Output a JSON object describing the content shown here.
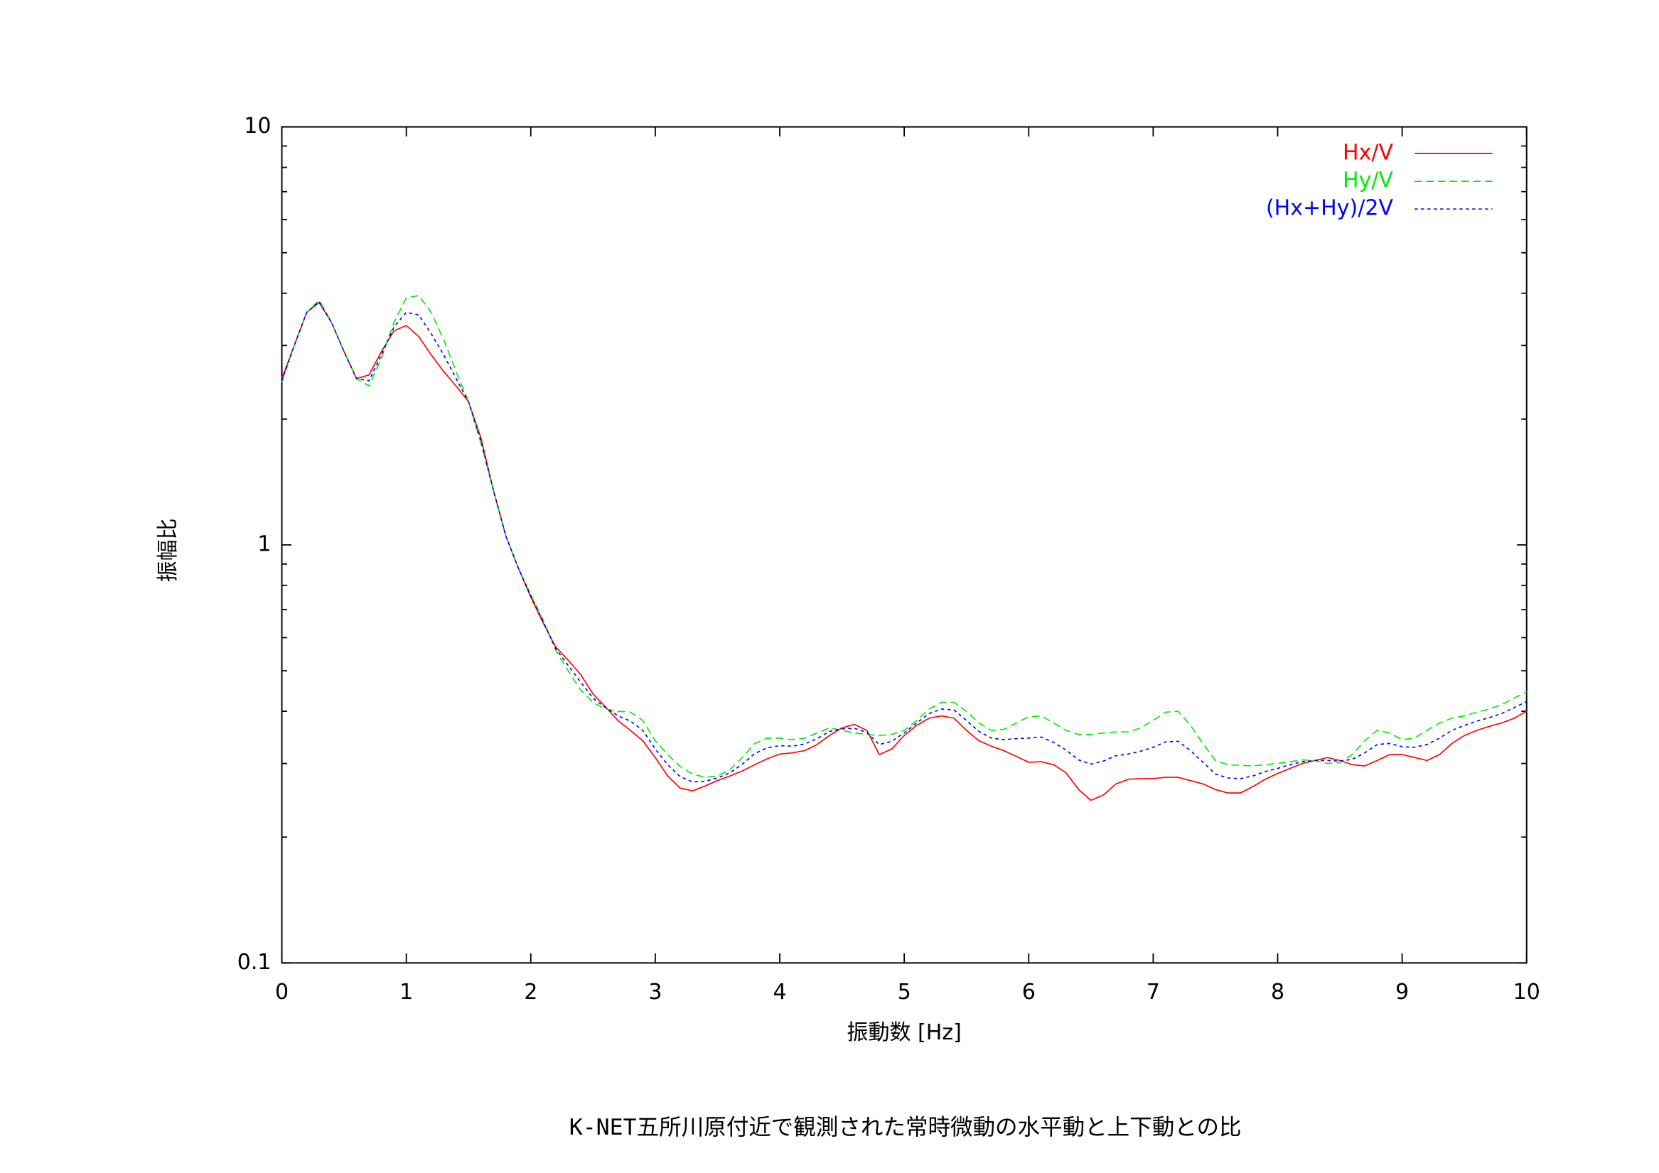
{
  "chart_data": {
    "type": "line",
    "caption": "K-NET五所川原付近で観測された常時微動の水平動と上下動との比",
    "xlabel": "振動数 [Hz]",
    "ylabel": "振幅比",
    "ylog": true,
    "legend": "top-right",
    "xlim": [
      0,
      10
    ],
    "ylim": [
      0.1,
      10
    ],
    "xticks": [
      0,
      1,
      2,
      3,
      4,
      5,
      6,
      7,
      8,
      9,
      10
    ],
    "yticks": [
      0.1,
      1,
      10
    ],
    "yminorticks": [
      0.2,
      0.3,
      0.4,
      0.5,
      0.6,
      0.7,
      0.8,
      0.9,
      2,
      3,
      4,
      5,
      6,
      7,
      8,
      9
    ],
    "x": [
      0,
      0.1,
      0.2,
      0.3,
      0.4,
      0.5,
      0.6,
      0.7,
      0.8,
      0.9,
      1,
      1.1,
      1.2,
      1.3,
      1.4,
      1.5,
      1.6,
      1.7,
      1.8,
      1.9,
      2,
      2.1,
      2.2,
      2.3,
      2.4,
      2.5,
      2.6,
      2.7,
      2.8,
      2.9,
      3,
      3.1,
      3.2,
      3.3,
      3.4,
      3.5,
      3.6,
      3.7,
      3.8,
      3.9,
      4,
      4.1,
      4.2,
      4.3,
      4.4,
      4.5,
      4.6,
      4.7,
      4.8,
      4.9,
      5,
      5.1,
      5.2,
      5.3,
      5.4,
      5.5,
      5.6,
      5.7,
      5.8,
      5.9,
      6,
      6.1,
      6.2,
      6.3,
      6.4,
      6.5,
      6.6,
      6.7,
      6.8,
      6.9,
      7,
      7.1,
      7.2,
      7.3,
      7.4,
      7.5,
      7.6,
      7.7,
      7.8,
      7.9,
      8,
      8.1,
      8.2,
      8.3,
      8.4,
      8.5,
      8.6,
      8.7,
      8.8,
      8.9,
      9,
      9.1,
      9.2,
      9.3,
      9.4,
      9.5,
      9.6,
      9.7,
      9.8,
      9.9,
      10
    ],
    "series": [
      {
        "name": "Hx/V",
        "color": "#ff0000",
        "dash": "none",
        "values": [
          2.5,
          3.0,
          3.6,
          3.8,
          3.4,
          2.9,
          2.5,
          2.55,
          2.9,
          3.25,
          3.35,
          3.15,
          2.85,
          2.6,
          2.4,
          2.2,
          1.8,
          1.35,
          1.05,
          0.88,
          0.75,
          0.65,
          0.57,
          0.53,
          0.49,
          0.44,
          0.41,
          0.38,
          0.36,
          0.34,
          0.31,
          0.28,
          0.262,
          0.258,
          0.265,
          0.273,
          0.28,
          0.288,
          0.298,
          0.308,
          0.316,
          0.318,
          0.322,
          0.333,
          0.35,
          0.365,
          0.372,
          0.36,
          0.315,
          0.325,
          0.35,
          0.37,
          0.385,
          0.39,
          0.385,
          0.36,
          0.34,
          0.33,
          0.322,
          0.312,
          0.302,
          0.303,
          0.298,
          0.285,
          0.26,
          0.245,
          0.252,
          0.268,
          0.275,
          0.276,
          0.276,
          0.278,
          0.278,
          0.273,
          0.268,
          0.26,
          0.255,
          0.255,
          0.264,
          0.275,
          0.284,
          0.292,
          0.3,
          0.305,
          0.31,
          0.305,
          0.298,
          0.296,
          0.305,
          0.315,
          0.315,
          0.31,
          0.305,
          0.315,
          0.335,
          0.35,
          0.36,
          0.368,
          0.375,
          0.385,
          0.4
        ]
      },
      {
        "name": "Hy/V",
        "color": "#00ee00",
        "dash": "7,4",
        "values": [
          2.45,
          3.0,
          3.6,
          3.85,
          3.4,
          2.9,
          2.5,
          2.4,
          2.8,
          3.4,
          3.9,
          3.95,
          3.6,
          3.1,
          2.6,
          2.2,
          1.75,
          1.35,
          1.05,
          0.88,
          0.76,
          0.66,
          0.56,
          0.5,
          0.45,
          0.42,
          0.405,
          0.4,
          0.398,
          0.38,
          0.34,
          0.315,
          0.295,
          0.283,
          0.278,
          0.28,
          0.29,
          0.31,
          0.335,
          0.345,
          0.345,
          0.342,
          0.345,
          0.355,
          0.365,
          0.36,
          0.355,
          0.352,
          0.35,
          0.352,
          0.36,
          0.38,
          0.405,
          0.42,
          0.42,
          0.4,
          0.375,
          0.36,
          0.362,
          0.375,
          0.388,
          0.39,
          0.375,
          0.36,
          0.352,
          0.352,
          0.355,
          0.357,
          0.357,
          0.365,
          0.38,
          0.398,
          0.4,
          0.37,
          0.335,
          0.305,
          0.298,
          0.297,
          0.296,
          0.298,
          0.3,
          0.303,
          0.306,
          0.305,
          0.3,
          0.302,
          0.315,
          0.34,
          0.36,
          0.355,
          0.342,
          0.345,
          0.36,
          0.375,
          0.385,
          0.39,
          0.398,
          0.405,
          0.415,
          0.43,
          0.445
        ]
      },
      {
        "name": "(Hx+Hy)/2V",
        "color": "#0000ff",
        "dash": "3,3",
        "values": [
          2.47,
          3.0,
          3.6,
          3.82,
          3.4,
          2.9,
          2.5,
          2.47,
          2.85,
          3.32,
          3.6,
          3.55,
          3.2,
          2.85,
          2.5,
          2.2,
          1.77,
          1.35,
          1.05,
          0.88,
          0.755,
          0.655,
          0.565,
          0.515,
          0.47,
          0.43,
          0.408,
          0.39,
          0.379,
          0.36,
          0.325,
          0.298,
          0.279,
          0.271,
          0.272,
          0.277,
          0.285,
          0.299,
          0.317,
          0.327,
          0.331,
          0.33,
          0.334,
          0.344,
          0.358,
          0.363,
          0.364,
          0.356,
          0.333,
          0.339,
          0.355,
          0.375,
          0.395,
          0.405,
          0.403,
          0.38,
          0.358,
          0.345,
          0.342,
          0.344,
          0.345,
          0.347,
          0.337,
          0.323,
          0.306,
          0.299,
          0.304,
          0.313,
          0.316,
          0.321,
          0.328,
          0.338,
          0.339,
          0.322,
          0.302,
          0.283,
          0.277,
          0.276,
          0.28,
          0.287,
          0.292,
          0.298,
          0.303,
          0.305,
          0.305,
          0.304,
          0.307,
          0.318,
          0.333,
          0.335,
          0.329,
          0.328,
          0.333,
          0.345,
          0.36,
          0.37,
          0.379,
          0.386,
          0.395,
          0.408,
          0.422
        ]
      }
    ]
  }
}
